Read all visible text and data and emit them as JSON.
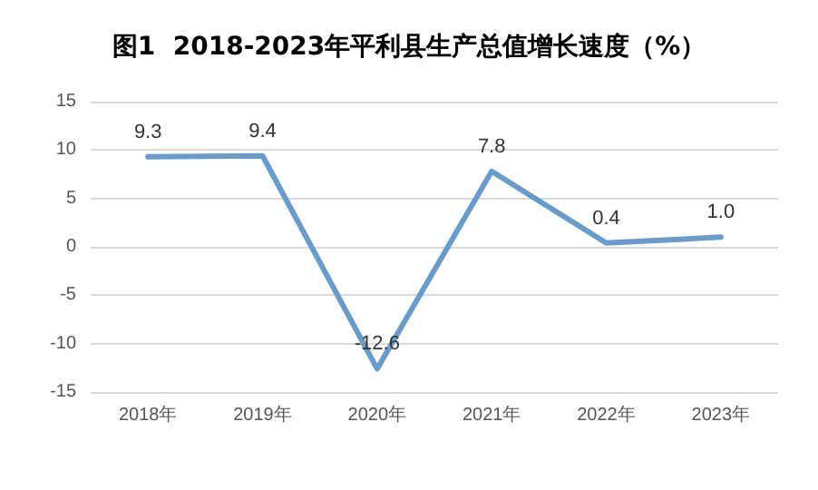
{
  "chart_data": {
    "type": "line",
    "title": "图1  2018-2023年平利县生产总值增长速度（%）",
    "categories": [
      "2018年",
      "2019年",
      "2020年",
      "2021年",
      "2022年",
      "2023年"
    ],
    "values": [
      9.3,
      9.4,
      -12.6,
      7.8,
      0.4,
      1.0
    ],
    "value_labels": [
      "9.3",
      "9.4",
      "-12.6",
      "7.8",
      "0.4",
      "1.0"
    ],
    "color": "#6a9ccb",
    "ylim": [
      -15,
      15
    ],
    "yticks": [
      -15,
      -10,
      -5,
      0,
      5,
      10,
      15
    ],
    "grid": "y",
    "marker": "none",
    "line_style": "solid"
  }
}
